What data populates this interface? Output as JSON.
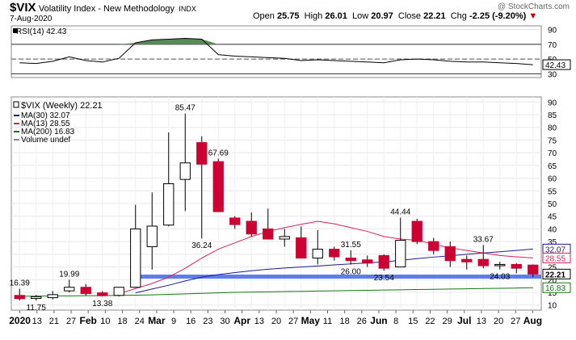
{
  "header": {
    "symbol": "$VIX",
    "name": "Volatility Index - New Methodology",
    "exchange": "INDX",
    "date": "7-Aug-2020",
    "watermark": "@ StockCharts.com",
    "open_label": "Open",
    "open": "25.75",
    "high_label": "High",
    "high": "26.01",
    "low_label": "Low",
    "low": "20.97",
    "close_label": "Close",
    "close": "22.21",
    "chg_label": "Chg",
    "chg": "-2.25 (-9.20%)",
    "chg_arrow": "▼"
  },
  "colors": {
    "up": "#ffffff",
    "down": "#cc0033",
    "ma30": "#1a1a99",
    "ma13": "#dd2255",
    "ma200": "#117711",
    "support": "#4466ee",
    "rsi_fill": "#5a8a5a"
  },
  "rsi_panel": {
    "label": "RSI(14) 42.43",
    "ticks": [
      90,
      70,
      50,
      30
    ],
    "last_value": "42.43",
    "overbought": 70,
    "oversold": 30,
    "midline": 50
  },
  "chart_data": {
    "type": "candlestick",
    "title": "$VIX (Weekly) 22.21",
    "legend": [
      {
        "name": "MA(30) 32.07",
        "color": "#1a1a99"
      },
      {
        "name": "MA(13) 28.55",
        "color": "#dd2255"
      },
      {
        "name": "MA(200) 16.83",
        "color": "#117711"
      },
      {
        "name": "Volume undef",
        "color": "#888888"
      }
    ],
    "y_ticks": [
      90,
      85,
      80,
      75,
      70,
      65,
      60,
      55,
      50,
      45,
      40,
      35,
      30,
      25,
      20,
      15,
      10
    ],
    "ylim": [
      8,
      92
    ],
    "x_labels": [
      "2020",
      "13",
      "21",
      "27",
      "Feb",
      "10",
      "18",
      "24",
      "Mar",
      "9",
      "16",
      "23",
      "30",
      "Apr",
      "13",
      "20",
      "27",
      "May",
      "11",
      "18",
      "26",
      "Jun",
      "8",
      "15",
      "22",
      "29",
      "Jul",
      "13",
      "20",
      "27",
      "Aug"
    ],
    "candles": [
      {
        "o": 13.8,
        "h": 16.4,
        "l": 11.8,
        "c": 12.5
      },
      {
        "o": 12.6,
        "h": 14.0,
        "l": 11.75,
        "c": 13.3
      },
      {
        "o": 12.9,
        "h": 15.5,
        "l": 12.2,
        "c": 14.1
      },
      {
        "o": 15.6,
        "h": 19.99,
        "l": 15.0,
        "c": 17.0
      },
      {
        "o": 17.0,
        "h": 18.3,
        "l": 13.7,
        "c": 14.5
      },
      {
        "o": 14.8,
        "h": 15.5,
        "l": 13.38,
        "c": 13.7
      },
      {
        "o": 13.8,
        "h": 17.1,
        "l": 13.4,
        "c": 17.0
      },
      {
        "o": 17.0,
        "h": 49.5,
        "l": 16.8,
        "c": 40.0
      },
      {
        "o": 33.0,
        "h": 54.4,
        "l": 24.0,
        "c": 41.1
      },
      {
        "o": 41.5,
        "h": 78.0,
        "l": 41.0,
        "c": 57.8
      },
      {
        "o": 59.5,
        "h": 85.47,
        "l": 47.0,
        "c": 66.0
      },
      {
        "o": 74.0,
        "h": 76.5,
        "l": 36.24,
        "c": 65.5
      },
      {
        "o": 66.5,
        "h": 67.69,
        "l": 47.0,
        "c": 46.8
      },
      {
        "o": 44.3,
        "h": 45.0,
        "l": 40.0,
        "c": 41.7
      },
      {
        "o": 43.0,
        "h": 46.5,
        "l": 37.0,
        "c": 38.0
      },
      {
        "o": 40.0,
        "h": 48.0,
        "l": 36.0,
        "c": 36.0
      },
      {
        "o": 36.0,
        "h": 40.0,
        "l": 33.0,
        "c": 37.0
      },
      {
        "o": 36.5,
        "h": 41.0,
        "l": 28.5,
        "c": 28.5
      },
      {
        "o": 28.5,
        "h": 39.5,
        "l": 26.0,
        "c": 32.0
      },
      {
        "o": 32.0,
        "h": 33.0,
        "l": 27.5,
        "c": 29.0
      },
      {
        "o": 28.5,
        "h": 31.55,
        "l": 26.0,
        "c": 27.5
      },
      {
        "o": 27.8,
        "h": 29.5,
        "l": 25.0,
        "c": 26.5
      },
      {
        "o": 29.5,
        "h": 30.0,
        "l": 23.54,
        "c": 24.5
      },
      {
        "o": 25.0,
        "h": 44.44,
        "l": 25.0,
        "c": 35.5
      },
      {
        "o": 43.0,
        "h": 44.0,
        "l": 34.0,
        "c": 35.0
      },
      {
        "o": 35.0,
        "h": 36.5,
        "l": 30.0,
        "c": 31.5
      },
      {
        "o": 33.0,
        "h": 35.0,
        "l": 25.0,
        "c": 27.5
      },
      {
        "o": 28.0,
        "h": 29.5,
        "l": 24.0,
        "c": 27.0
      },
      {
        "o": 28.0,
        "h": 33.67,
        "l": 24.5,
        "c": 25.5
      },
      {
        "o": 25.5,
        "h": 27.0,
        "l": 24.03,
        "c": 26.0
      },
      {
        "o": 26.0,
        "h": 26.5,
        "l": 22.5,
        "c": 24.5
      },
      {
        "o": 25.75,
        "h": 26.01,
        "l": 20.97,
        "c": 22.21
      }
    ],
    "annotations": [
      {
        "label": "16.39",
        "i": 0,
        "anchor": "high"
      },
      {
        "label": "11.75",
        "i": 1,
        "anchor": "low"
      },
      {
        "label": "19.99",
        "i": 3,
        "anchor": "high"
      },
      {
        "label": "13.38",
        "i": 5,
        "anchor": "low"
      },
      {
        "label": "85.47",
        "i": 10,
        "anchor": "high"
      },
      {
        "label": "36.24",
        "i": 11,
        "anchor": "low"
      },
      {
        "label": "67.69",
        "i": 12,
        "anchor": "high"
      },
      {
        "label": "31.55",
        "i": 20,
        "anchor": "high"
      },
      {
        "label": "26.00",
        "i": 20,
        "anchor": "low"
      },
      {
        "label": "23.54",
        "i": 22,
        "anchor": "low"
      },
      {
        "label": "44.44",
        "i": 23,
        "anchor": "high"
      },
      {
        "label": "33.67",
        "i": 28,
        "anchor": "high"
      },
      {
        "label": "24.03",
        "i": 29,
        "anchor": "low"
      }
    ],
    "ma30": [
      null,
      null,
      null,
      null,
      null,
      null,
      null,
      14.8,
      16.3,
      17.8,
      19.5,
      21.0,
      22.0,
      22.8,
      23.5,
      24.1,
      24.6,
      25.0,
      25.4,
      25.8,
      26.2,
      26.6,
      27.0,
      27.6,
      28.3,
      28.9,
      29.4,
      30.0,
      30.5,
      31.0,
      31.5,
      32.07
    ],
    "ma13": [
      null,
      null,
      null,
      null,
      null,
      null,
      14.5,
      16.5,
      18.5,
      21.0,
      24.5,
      28.5,
      32.0,
      34.5,
      37.0,
      39.0,
      40.5,
      41.8,
      43.0,
      42.0,
      40.5,
      39.0,
      37.0,
      36.0,
      35.5,
      34.0,
      32.5,
      31.5,
      30.5,
      29.5,
      29.0,
      28.55
    ],
    "ma200": [
      13.5,
      13.5,
      13.6,
      13.6,
      13.7,
      13.7,
      13.8,
      13.9,
      14.0,
      14.2,
      14.4,
      14.6,
      14.8,
      15.0,
      15.1,
      15.2,
      15.3,
      15.4,
      15.5,
      15.6,
      15.7,
      15.8,
      15.9,
      16.0,
      16.1,
      16.2,
      16.3,
      16.4,
      16.5,
      16.6,
      16.7,
      16.83
    ],
    "support_line": 21.2,
    "rsi": [
      45,
      44,
      47,
      53,
      48,
      46,
      51,
      72,
      76,
      77,
      78,
      77,
      56,
      54,
      53,
      52,
      51,
      48,
      49,
      48,
      47,
      46,
      45,
      49,
      50,
      49,
      47,
      46,
      46,
      45,
      44,
      42.43
    ],
    "right_labels": [
      {
        "text": "32.07",
        "value": 32.07,
        "color": "#1a1a99"
      },
      {
        "text": "28.55",
        "value": 28.55,
        "color": "#dd2255"
      },
      {
        "text": "22.21",
        "value": 22.21,
        "color": "#000000"
      },
      {
        "text": "16.83",
        "value": 16.83,
        "color": "#117711"
      }
    ]
  }
}
